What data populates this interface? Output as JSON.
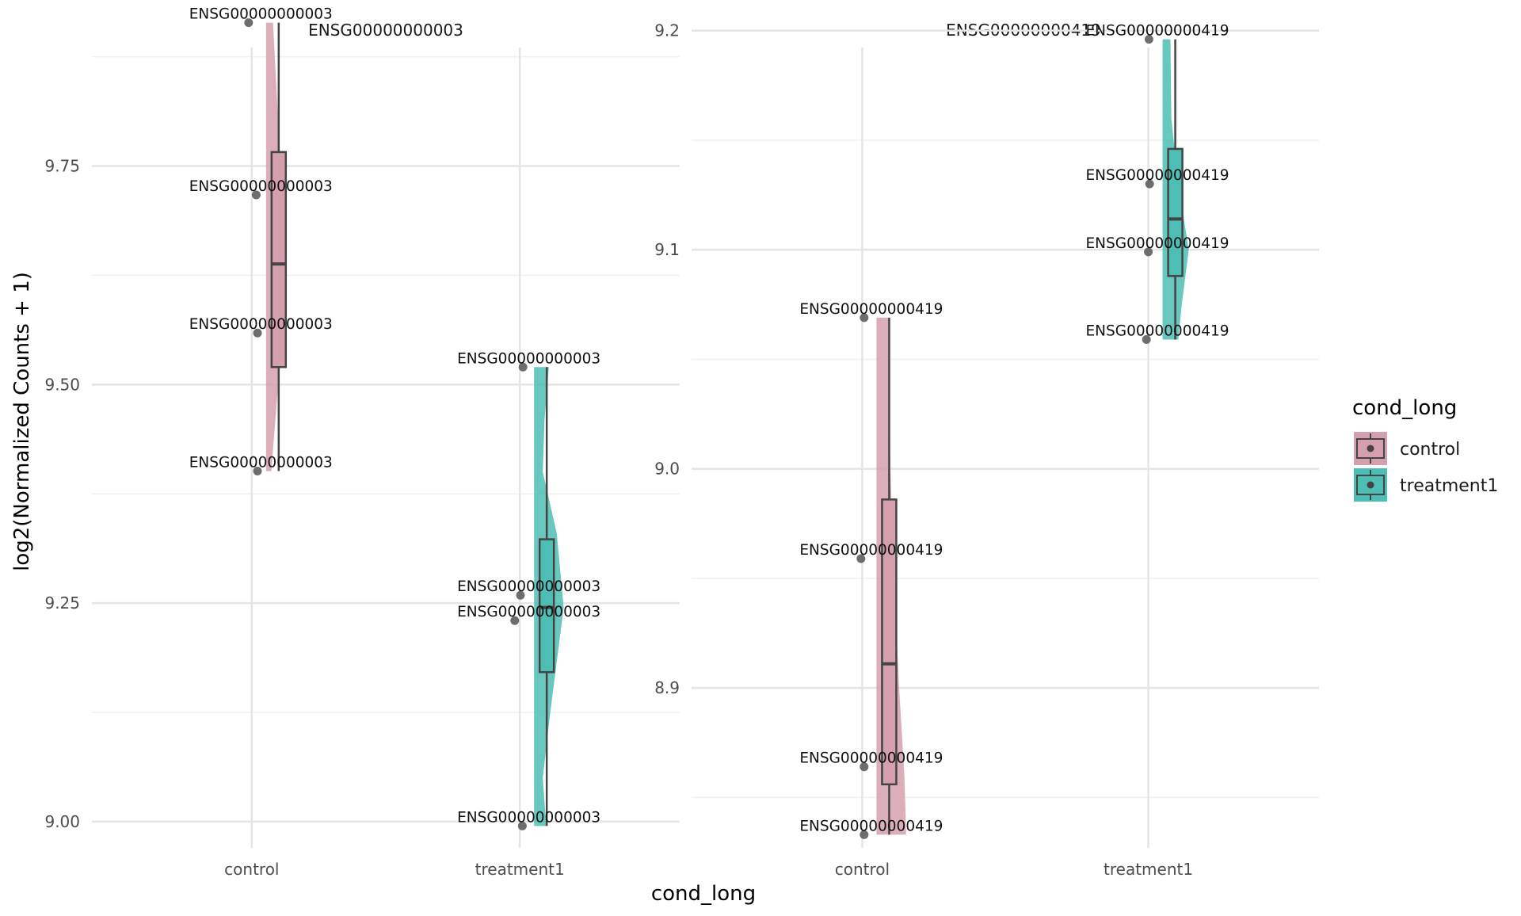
{
  "chart_data": {
    "type": "raincloud",
    "xlabel": "cond_long",
    "ylabel": "log2(Normalized Counts + 1)",
    "legend": {
      "title": "cond_long",
      "position": "right",
      "entries": [
        {
          "label": "control",
          "color": "#d5a0ad"
        },
        {
          "label": "treatment1",
          "color": "#4dbeb4"
        }
      ]
    },
    "panels": [
      {
        "title": "ENSG00000000003",
        "categories": [
          "control",
          "treatment1"
        ],
        "ylim": [
          8.97,
          9.92
        ],
        "yticks": [
          9.0,
          9.25,
          9.5,
          9.75
        ],
        "ytick_labels": [
          "9.00",
          "9.25",
          "9.50",
          "9.75"
        ],
        "minor_yticks": [
          9.125,
          9.375,
          9.625,
          9.875
        ],
        "groups": [
          {
            "name": "control",
            "points": [
              9.914,
              9.717,
              9.559,
              9.401
            ],
            "point_jitter": [
              -0.05,
              0.07,
              0.09,
              0.09
            ],
            "point_labels": [
              "ENSG00000000003",
              "ENSG00000000003",
              "ENSG00000000003",
              "ENSG00000000003"
            ],
            "box": {
              "min": 9.401,
              "q1": 9.52,
              "median": 9.638,
              "q3": 9.766,
              "max": 9.914
            },
            "density": [
              [
                9.401,
                0.03
              ],
              [
                9.5,
                0.07
              ],
              [
                9.6,
                0.1
              ],
              [
                9.7,
                0.1
              ],
              [
                9.8,
                0.07
              ],
              [
                9.914,
                0.04
              ]
            ]
          },
          {
            "name": "treatment1",
            "points": [
              9.52,
              9.259,
              9.23,
              8.995
            ],
            "point_jitter": [
              0.05,
              0.01,
              -0.08,
              0.04
            ],
            "point_labels": [
              "ENSG00000000003",
              "ENSG00000000003",
              "ENSG00000000003",
              "ENSG00000000003"
            ],
            "box": {
              "min": 8.995,
              "q1": 9.171,
              "median": 9.245,
              "q3": 9.323,
              "max": 9.52
            },
            "density": [
              [
                8.995,
                0.07
              ],
              [
                9.05,
                0.05
              ],
              [
                9.12,
                0.09
              ],
              [
                9.245,
                0.17
              ],
              [
                9.33,
                0.13
              ],
              [
                9.4,
                0.05
              ],
              [
                9.46,
                0.06
              ],
              [
                9.52,
                0.085
              ]
            ]
          }
        ],
        "annotation_labels": [
          {
            "text": "ENSG00000000003",
            "group": 0,
            "value": 9.914
          },
          {
            "text": "ENSG00000000003",
            "group": 0,
            "value": 9.717
          },
          {
            "text": "ENSG00000000003",
            "group": 0,
            "value": 9.559
          },
          {
            "text": "ENSG00000000003",
            "group": 0,
            "value": 9.401
          },
          {
            "text": "ENSG00000000003",
            "group": 1,
            "value": 9.52
          },
          {
            "text": "ENSG00000000003",
            "group": 1,
            "value": 9.259
          },
          {
            "text": "ENSG00000000003",
            "group": 1,
            "value": 9.23
          },
          {
            "text": "ENSG00000000003",
            "group": 1,
            "value": 8.995
          }
        ]
      },
      {
        "title": "ENSG00000000419",
        "categories": [
          "control",
          "treatment1"
        ],
        "ylim": [
          8.827,
          9.206
        ],
        "yticks": [
          8.9,
          9.0,
          9.1,
          9.2
        ],
        "ytick_labels": [
          "8.9",
          "9.0",
          "9.1",
          "9.2"
        ],
        "minor_yticks": [
          8.85,
          8.95,
          9.05,
          9.15
        ],
        "groups": [
          {
            "name": "control",
            "points": [
              9.069,
              8.959,
              8.864,
              8.833
            ],
            "point_jitter": [
              0.03,
              -0.02,
              0.03,
              0.03
            ],
            "point_labels": [
              "ENSG00000000419",
              "ENSG00000000419",
              "ENSG00000000419",
              "ENSG00000000419"
            ],
            "box": {
              "min": 8.833,
              "q1": 8.856,
              "median": 8.911,
              "q3": 8.986,
              "max": 9.069
            },
            "density": [
              [
                8.833,
                0.17
              ],
              [
                8.86,
                0.16
              ],
              [
                8.9,
                0.13
              ],
              [
                8.95,
                0.1
              ],
              [
                9.0,
                0.08
              ],
              [
                9.069,
                0.07
              ]
            ]
          },
          {
            "name": "treatment1",
            "points": [
              9.196,
              9.13,
              9.099,
              9.059
            ],
            "point_jitter": [
              0.01,
              0.02,
              0.0,
              -0.03
            ],
            "point_labels": [
              "ENSG00000000419",
              "ENSG00000000419",
              "ENSG00000000419",
              "ENSG00000000419"
            ],
            "box": {
              "min": 9.059,
              "q1": 9.088,
              "median": 9.114,
              "q3": 9.146,
              "max": 9.196
            },
            "density": [
              [
                9.059,
                0.09
              ],
              [
                9.075,
                0.11
              ],
              [
                9.1,
                0.15
              ],
              [
                9.13,
                0.09
              ],
              [
                9.16,
                0.05
              ],
              [
                9.196,
                0.045
              ]
            ]
          }
        ],
        "annotation_labels": [
          {
            "text": "ENSG00000000419",
            "group": 1,
            "value": 9.196
          },
          {
            "text": "ENSG00000000419",
            "group": 1,
            "value": 9.13
          },
          {
            "text": "ENSG00000000419",
            "group": 1,
            "value": 9.099
          },
          {
            "text": "ENSG00000000419",
            "group": 1,
            "value": 9.059
          },
          {
            "text": "ENSG00000000419",
            "group": 0,
            "value": 9.069
          },
          {
            "text": "ENSG00000000419",
            "group": 0,
            "value": 8.959
          },
          {
            "text": "ENSG00000000419",
            "group": 0,
            "value": 8.864
          },
          {
            "text": "ENSG00000000419",
            "group": 0,
            "value": 8.833
          }
        ]
      }
    ]
  }
}
